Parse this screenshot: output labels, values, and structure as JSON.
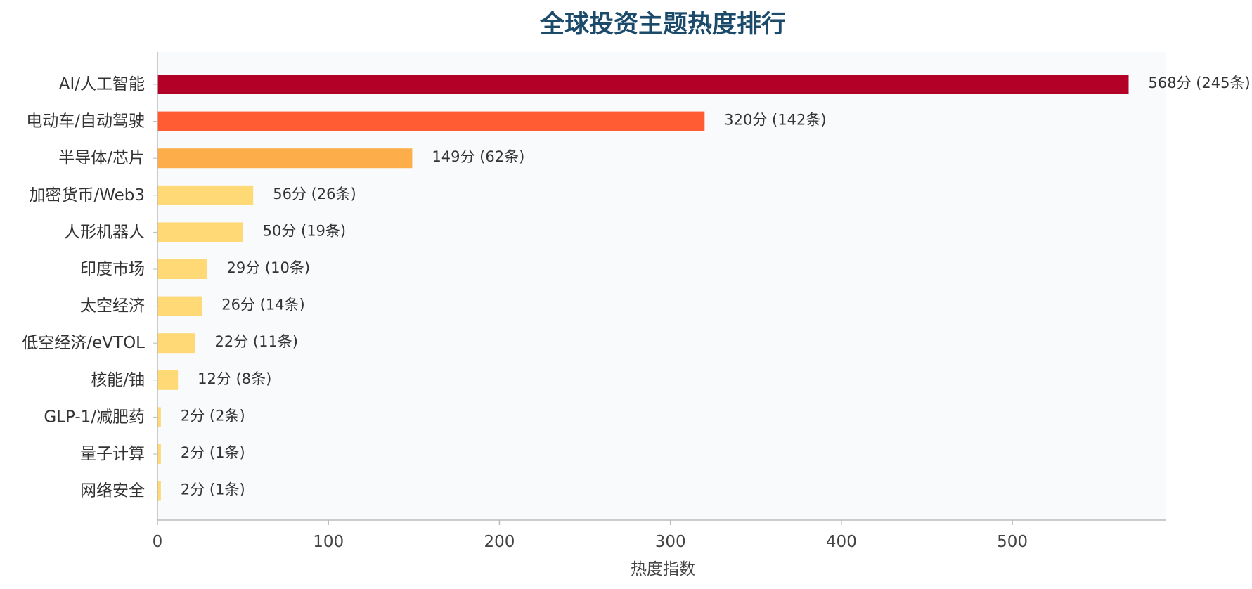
{
  "chart_data": {
    "type": "bar",
    "orientation": "horizontal",
    "title": "全球投资主题热度排行",
    "xlabel": "热度指数",
    "ylabel": "",
    "xlim": [
      0,
      590
    ],
    "xticks": [
      0,
      100,
      200,
      300,
      400,
      500
    ],
    "grid": false,
    "plot_background": "#f8fafc",
    "categories": [
      "AI/人工智能",
      "电动车/自动驾驶",
      "半导体/芯片",
      "加密货币/Web3",
      "人形机器人",
      "印度市场",
      "太空经济",
      "低空经济/eVTOL",
      "核能/铀",
      "GLP-1/减肥药",
      "量子计算",
      "网络安全"
    ],
    "values": [
      568,
      320,
      149,
      56,
      50,
      29,
      26,
      22,
      12,
      2,
      2,
      2
    ],
    "data_labels": [
      "568分 (245条)",
      "320分 (142条)",
      "149分 (62条)",
      "56分 (26条)",
      "50分 (19条)",
      "29分 (10条)",
      "26分 (14条)",
      "22分 (11条)",
      "12分 (8条)",
      "2分 (2条)",
      "2分 (1条)",
      "2分 (1条)"
    ],
    "colors": [
      "#b30026",
      "#ff5c33",
      "#fdae4b",
      "#fed976",
      "#fed976",
      "#fed976",
      "#fed976",
      "#fed976",
      "#fed976",
      "#fed976",
      "#fed976",
      "#fed976"
    ]
  }
}
